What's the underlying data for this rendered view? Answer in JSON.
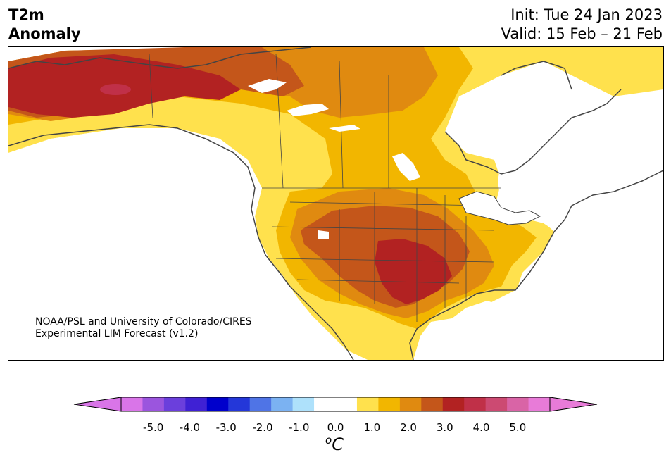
{
  "title": {
    "line1": "T2m",
    "line2": "Anomaly",
    "init": "Init: Tue 24 Jan 2023",
    "valid": "Valid: 15 Feb – 21 Feb"
  },
  "credit": {
    "line1": "NOAA/PSL and University of Colorado/CIRES",
    "line2": "Experimental LIM Forecast (v1.2)"
  },
  "colorbar": {
    "unit_sup": "o",
    "unit": "C",
    "ticks": [
      "-5.0",
      "-4.0",
      "-3.0",
      "-2.0",
      "-1.0",
      "0.0",
      "1.0",
      "2.0",
      "3.0",
      "4.0",
      "5.0"
    ],
    "colors": [
      "#d975e8",
      "#9b55de",
      "#6b3fdc",
      "#3f21d4",
      "#0000cc",
      "#2437d9",
      "#4f74e6",
      "#7bb2f2",
      "#aee1fb",
      "#ffffff",
      "#ffffff",
      "#ffe14d",
      "#f2b600",
      "#e08a10",
      "#c4561a",
      "#b22222",
      "#c03048",
      "#cc4a72",
      "#d964a6",
      "#e87bd8"
    ],
    "min_color": "#d975e8",
    "max_color": "#e87bd8"
  },
  "map_colors": {
    "c1": "#ffe14d",
    "c2": "#f2b600",
    "c3": "#e08a10",
    "c4": "#c4561a",
    "c5": "#b22222",
    "c6": "#c03048",
    "neg1": "#aee1fb"
  }
}
